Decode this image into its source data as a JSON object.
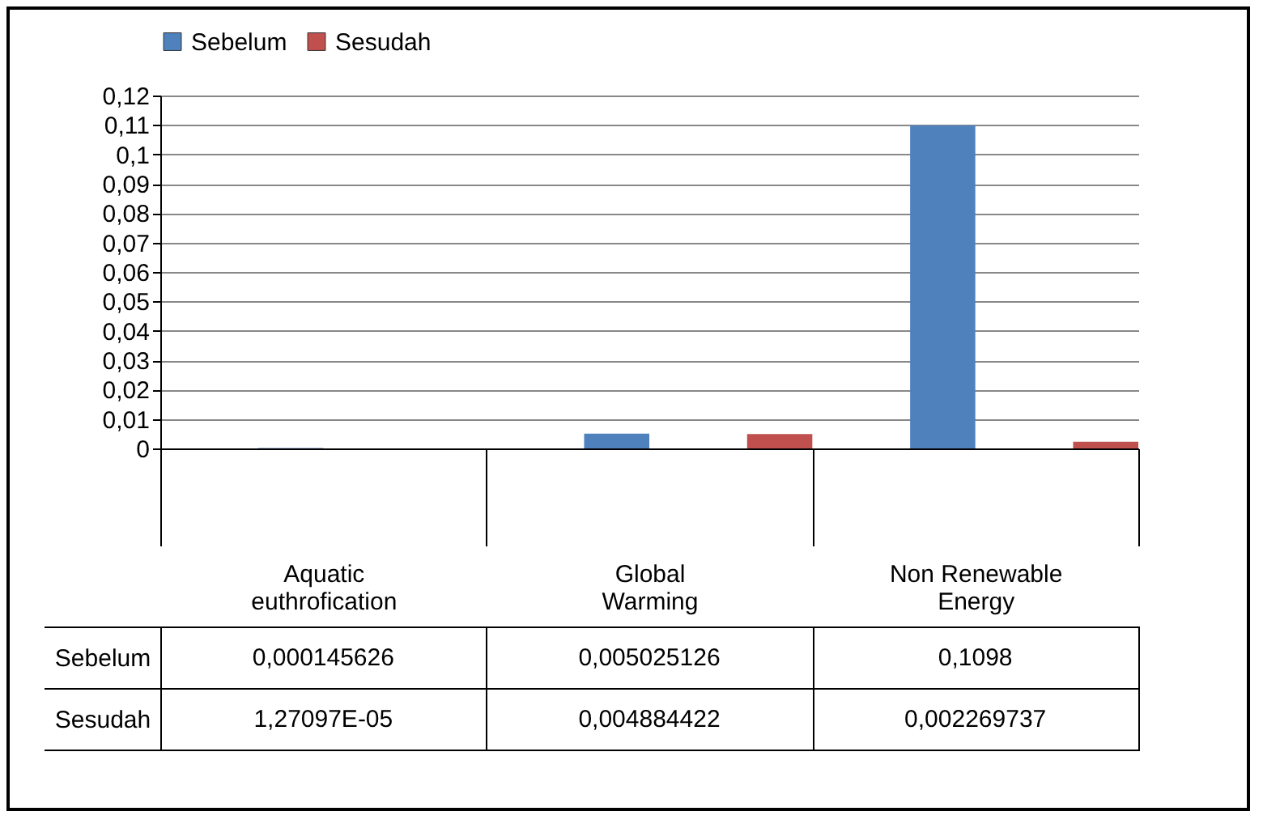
{
  "chart_data": {
    "type": "bar",
    "categories": [
      "Aquatic euthrofication",
      "Global Warming",
      "Non Renewable Energy"
    ],
    "series": [
      {
        "name": "Sebelum",
        "color": "#4f81bd",
        "values": [
          0.000145626,
          0.005025126,
          0.1098
        ],
        "value_labels": [
          "0,000145626",
          "0,005025126",
          "0,1098"
        ]
      },
      {
        "name": "Sesudah",
        "color": "#c0504d",
        "values": [
          1.27097e-05,
          0.004884422,
          0.002269737
        ],
        "value_labels": [
          "1,27097E-05",
          "0,004884422",
          "0,002269737"
        ]
      }
    ],
    "ylim": [
      0,
      0.12
    ],
    "yticks": [
      0,
      {
        "value": 0.01,
        "label": "0,01"
      },
      {
        "value": 0.02,
        "label": "0,02"
      },
      {
        "value": 0.03,
        "label": "0,03"
      },
      {
        "value": 0.04,
        "label": "0,04"
      },
      {
        "value": 0.05,
        "label": "0,05"
      },
      {
        "value": 0.06,
        "label": "0,06"
      },
      {
        "value": 0.07,
        "label": "0,07"
      },
      {
        "value": 0.08,
        "label": "0,08"
      },
      {
        "value": 0.09,
        "label": "0,09"
      },
      {
        "value": 0.1,
        "label": "0,1"
      },
      {
        "value": 0.11,
        "label": "0,11"
      },
      {
        "value": 0.12,
        "label": "0,12"
      }
    ],
    "grid": "y",
    "legend": "top"
  }
}
